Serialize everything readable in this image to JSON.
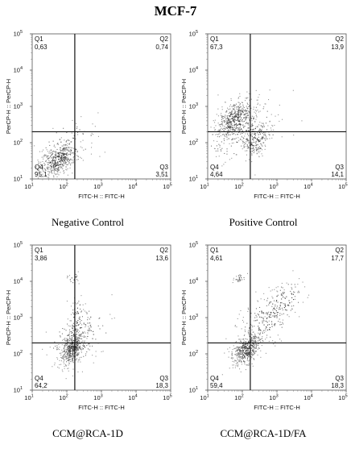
{
  "figure_title": "MCF-7",
  "chart_data": [
    {
      "type": "scatter",
      "caption": "Negative Control",
      "xlabel": "FITC-H :: FITC-H",
      "ylabel": "PerCP-H :: PerCP-H",
      "axis_scale": "log",
      "xlim": [
        10,
        100000
      ],
      "ylim": [
        10,
        100000
      ],
      "gates": {
        "x": 170,
        "y": 200
      },
      "quadrants": [
        {
          "name": "Q1",
          "value": "0,63"
        },
        {
          "name": "Q2",
          "value": "0,74"
        },
        {
          "name": "Q3",
          "value": "3,51"
        },
        {
          "name": "Q4",
          "value": "95,1"
        }
      ],
      "clusters": [
        {
          "x": 55,
          "y": 35,
          "spread_x": 0.28,
          "spread_y": 0.28,
          "n": 420
        },
        {
          "x": 90,
          "y": 80,
          "spread_x": 0.45,
          "spread_y": 0.45,
          "n": 90
        }
      ]
    },
    {
      "type": "scatter",
      "caption": "Positive Control",
      "xlabel": "FITC-H :: FITC-H",
      "ylabel": "PerCP-H :: PerCP-H",
      "axis_scale": "log",
      "xlim": [
        10,
        100000
      ],
      "ylim": [
        10,
        100000
      ],
      "gates": {
        "x": 170,
        "y": 200
      },
      "quadrants": [
        {
          "name": "Q1",
          "value": "67,3"
        },
        {
          "name": "Q2",
          "value": "13,9"
        },
        {
          "name": "Q3",
          "value": "14,1"
        },
        {
          "name": "Q4",
          "value": "4,64"
        }
      ],
      "clusters": [
        {
          "x": 60,
          "y": 450,
          "spread_x": 0.3,
          "spread_y": 0.35,
          "n": 450
        },
        {
          "x": 260,
          "y": 120,
          "spread_x": 0.2,
          "spread_y": 0.3,
          "n": 200
        },
        {
          "x": 90,
          "y": 220,
          "spread_x": 0.55,
          "spread_y": 0.55,
          "n": 150
        }
      ]
    },
    {
      "type": "scatter",
      "caption": "CCM@RCA-1D",
      "xlabel": "FITC-H :: FITC-H",
      "ylabel": "PerCP-H :: PerCP-H",
      "axis_scale": "log",
      "xlim": [
        10,
        100000
      ],
      "ylim": [
        10,
        100000
      ],
      "gates": {
        "x": 170,
        "y": 200
      },
      "quadrants": [
        {
          "name": "Q1",
          "value": "3,86"
        },
        {
          "name": "Q2",
          "value": "13,6"
        },
        {
          "name": "Q3",
          "value": "18,3"
        },
        {
          "name": "Q4",
          "value": "64,2"
        }
      ],
      "clusters": [
        {
          "x": 140,
          "y": 150,
          "spread_x": 0.18,
          "spread_y": 0.3,
          "n": 480
        },
        {
          "x": 180,
          "y": 700,
          "spread_x": 0.12,
          "spread_y": 0.6,
          "n": 110
        },
        {
          "x": 250,
          "y": 300,
          "spread_x": 0.5,
          "spread_y": 0.55,
          "n": 110
        },
        {
          "x": 150,
          "y": 12000,
          "spread_x": 0.1,
          "spread_y": 0.1,
          "n": 20
        }
      ]
    },
    {
      "type": "scatter",
      "caption": "CCM@RCA-1D/FA",
      "xlabel": "FITC-H :: FITC-H",
      "ylabel": "PerCP-H :: PerCP-H",
      "axis_scale": "log",
      "xlim": [
        10,
        100000
      ],
      "ylim": [
        10,
        100000
      ],
      "gates": {
        "x": 170,
        "y": 200
      },
      "quadrants": [
        {
          "name": "Q1",
          "value": "4,61"
        },
        {
          "name": "Q2",
          "value": "17,7"
        },
        {
          "name": "Q3",
          "value": "18,3"
        },
        {
          "name": "Q4",
          "value": "59,4"
        }
      ],
      "clusters": [
        {
          "x": 130,
          "y": 140,
          "spread_x": 0.22,
          "spread_y": 0.28,
          "n": 430
        },
        {
          "x": 500,
          "y": 900,
          "spread_x": 0.4,
          "spread_y": 0.45,
          "n": 200
        },
        {
          "x": 1500,
          "y": 3000,
          "spread_x": 0.35,
          "spread_y": 0.35,
          "n": 90
        },
        {
          "x": 80,
          "y": 12000,
          "spread_x": 0.1,
          "spread_y": 0.1,
          "n": 25
        }
      ]
    }
  ]
}
